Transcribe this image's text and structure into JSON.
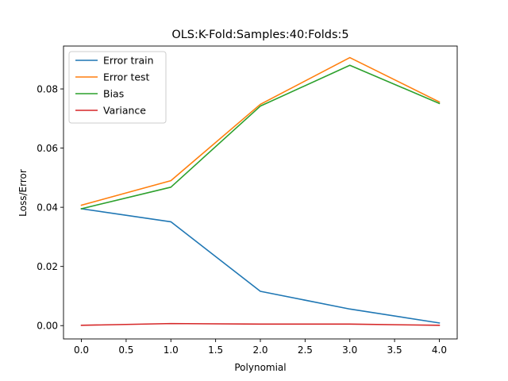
{
  "chart_data": {
    "type": "line",
    "title": "OLS:K-Fold:Samples:40:Folds:5",
    "xlabel": "Polynomial",
    "ylabel": "Loss/Error",
    "x": [
      0,
      1,
      2,
      3,
      4
    ],
    "xlim": [
      -0.2,
      4.2
    ],
    "ylim": [
      -0.0045,
      0.0945
    ],
    "xticks": [
      0.0,
      0.5,
      1.0,
      1.5,
      2.0,
      2.5,
      3.0,
      3.5,
      4.0
    ],
    "xtick_labels": [
      "0.0",
      "0.5",
      "1.0",
      "1.5",
      "2.0",
      "2.5",
      "3.0",
      "3.5",
      "4.0"
    ],
    "yticks": [
      0.0,
      0.02,
      0.04,
      0.06,
      0.08
    ],
    "ytick_labels": [
      "0.00",
      "0.02",
      "0.04",
      "0.06",
      "0.08"
    ],
    "grid": false,
    "legend_position": "top-left",
    "series": [
      {
        "name": "Error train",
        "color": "#1f77b4",
        "values": [
          0.0395,
          0.0351,
          0.0116,
          0.0056,
          0.0009
        ]
      },
      {
        "name": "Error test",
        "color": "#ff7f0e",
        "values": [
          0.0407,
          0.049,
          0.0748,
          0.0906,
          0.0756
        ]
      },
      {
        "name": "Bias",
        "color": "#2ca02c",
        "values": [
          0.0395,
          0.0468,
          0.0742,
          0.088,
          0.0751
        ]
      },
      {
        "name": "Variance",
        "color": "#d62728",
        "values": [
          0.0001,
          0.0007,
          0.0005,
          0.0005,
          0.0001
        ]
      }
    ]
  }
}
